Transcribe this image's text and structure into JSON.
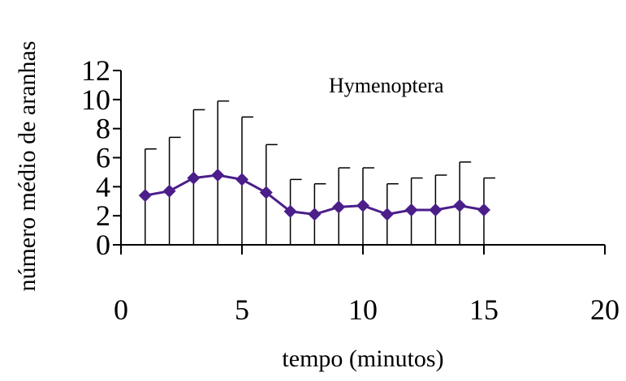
{
  "chart_data": {
    "type": "line",
    "title": "",
    "annotation": "Hymenoptera",
    "xlabel": "tempo (minutos)",
    "ylabel": "número médio de aranhas",
    "xlim": [
      0,
      20
    ],
    "ylim": [
      0,
      12
    ],
    "x_ticks": [
      "0",
      "5",
      "10",
      "15",
      "20"
    ],
    "y_ticks": [
      "0",
      "2",
      "4",
      "6",
      "8",
      "10",
      "12"
    ],
    "grid": false,
    "legend": "none",
    "series": [
      {
        "x": [
          1,
          2,
          3,
          4,
          5,
          6,
          7,
          8,
          9,
          10,
          11,
          12,
          13,
          14,
          15
        ],
        "values": [
          3.4,
          3.7,
          4.6,
          4.8,
          4.5,
          3.6,
          2.3,
          2.1,
          2.6,
          2.7,
          2.1,
          2.4,
          2.4,
          2.7,
          2.4
        ],
        "error_upper": [
          6.6,
          7.4,
          9.3,
          9.9,
          8.8,
          6.9,
          4.5,
          4.2,
          5.3,
          5.3,
          4.2,
          4.6,
          4.8,
          5.7,
          4.6
        ],
        "color": "#4b1e8a",
        "marker": "diamond"
      }
    ]
  }
}
